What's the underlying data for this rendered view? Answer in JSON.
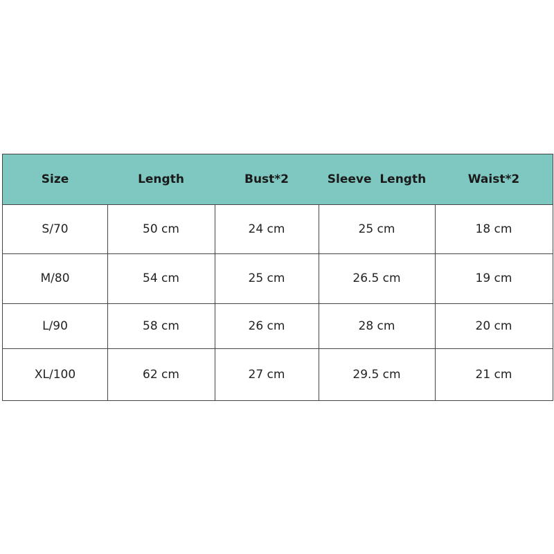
{
  "table": {
    "header": [
      "Size",
      "Length",
      "Bust*2",
      "Sleeve  Length",
      "Waist*2"
    ],
    "rows": [
      [
        "S/70",
        "50 cm",
        "24 cm",
        "25 cm",
        "18 cm"
      ],
      [
        "M/80",
        "54 cm",
        "25 cm",
        "26.5 cm",
        "19 cm"
      ],
      [
        "L/90",
        "58 cm",
        "26 cm",
        "28 cm",
        "20 cm"
      ],
      [
        "XL/100",
        "62 cm",
        "27 cm",
        "29.5 cm",
        "21 cm"
      ]
    ]
  }
}
